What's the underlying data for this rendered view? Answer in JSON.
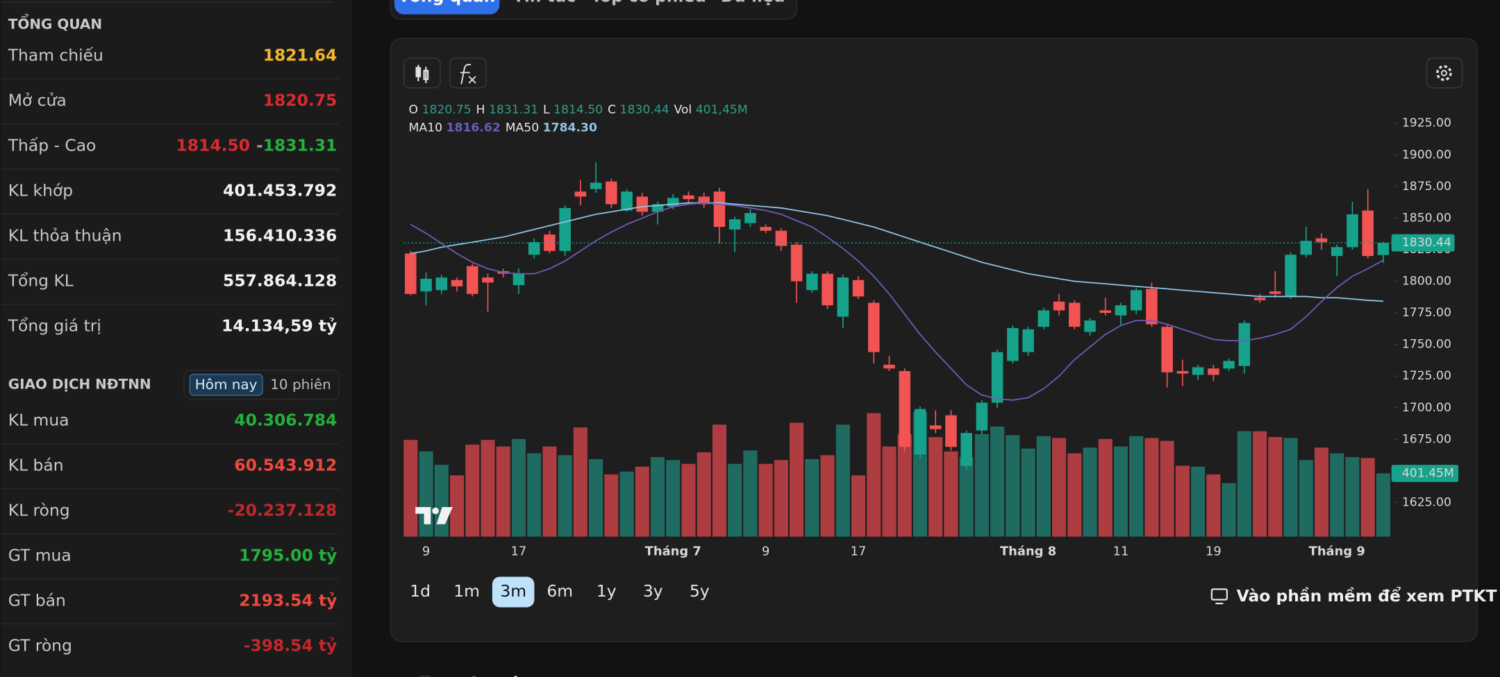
{
  "tabs": [
    "Tổng quan",
    "Tin tức",
    "Top cổ phiếu",
    "Dữ liệu"
  ],
  "overview": {
    "title": "TỔNG QUAN",
    "rows": [
      {
        "label": "Tham chiếu",
        "value": "1821.64",
        "color": "#f2b72c"
      },
      {
        "label": "Mở cửa",
        "value": "1820.75",
        "color": "#d92a2f"
      },
      {
        "label": "Thấp - Cao",
        "low": "1814.50",
        "sep": "-",
        "high": "1831.31",
        "low_color": "#d92a2f",
        "high_color": "#22b23c"
      },
      {
        "label": "KL khớp",
        "value": "401.453.792",
        "color": "#f2f2f2"
      },
      {
        "label": "KL thỏa thuận",
        "value": "156.410.336",
        "color": "#f2f2f2"
      },
      {
        "label": "Tổng KL",
        "value": "557.864.128",
        "color": "#f2f2f2"
      },
      {
        "label": "Tổng giá trị",
        "value": "14.134,59 tỷ",
        "color": "#f2f2f2"
      }
    ]
  },
  "foreign": {
    "title": "GIAO DỊCH NĐTNN",
    "toggle": [
      "Hôm nay",
      "10 phiên"
    ],
    "active": 0,
    "rows": [
      {
        "label": "KL mua",
        "value": "40.306.784",
        "color": "#22b23c"
      },
      {
        "label": "KL bán",
        "value": "60.543.912",
        "color": "#f0493e"
      },
      {
        "label": "KL ròng",
        "value": "-20.237.128",
        "color": "#c3272d"
      },
      {
        "label": "GT mua",
        "value": "1795.00 tỷ",
        "color": "#22b23c"
      },
      {
        "label": "GT bán",
        "value": "2193.54 tỷ",
        "color": "#f0493e"
      },
      {
        "label": "GT ròng",
        "value": "-398.54 tỷ",
        "color": "#c3272d"
      }
    ]
  },
  "chart_data": {
    "type": "candlestick",
    "legend": [
      {
        "label": "O",
        "value": "1820.75"
      },
      {
        "label": "H",
        "value": "1831.31"
      },
      {
        "label": "L",
        "value": "1814.50"
      },
      {
        "label": "C",
        "value": "1830.44"
      },
      {
        "label": "Vol",
        "value": "401,45M"
      }
    ],
    "categories": [
      null,
      "9",
      null,
      null,
      null,
      null,
      null,
      "17",
      null,
      null,
      null,
      null,
      null,
      null,
      null,
      null,
      null,
      "Tháng 7",
      null,
      null,
      null,
      null,
      null,
      "9",
      null,
      null,
      null,
      null,
      null,
      "17",
      null,
      null,
      null,
      null,
      null,
      null,
      null,
      null,
      null,
      null,
      "Tháng 8",
      null,
      null,
      null,
      null,
      null,
      "11",
      null,
      null,
      null,
      null,
      null,
      "19",
      null,
      null,
      null,
      null,
      null,
      null,
      null,
      "Tháng 9",
      null,
      null,
      null
    ],
    "open": [
      1822,
      1792,
      1793,
      1801,
      1812,
      1803,
      1808,
      1797,
      1821,
      1837,
      1824,
      1871,
      1873,
      1879,
      1856,
      1867,
      1855,
      1859,
      1868,
      1867,
      1871,
      1841,
      1846,
      1843,
      1840,
      1829,
      1793,
      1806,
      1772,
      1801,
      1783,
      1734,
      1729,
      1663,
      1686,
      1694,
      1654,
      1682,
      1704,
      1737,
      1744,
      1764,
      1784,
      1783,
      1760,
      1777,
      1773,
      1777,
      1794,
      1764,
      1729,
      1726,
      1731,
      1731,
      1733,
      1787,
      1792,
      1788,
      1821,
      1834,
      1820,
      1827,
      1856,
      1820.75
    ],
    "high": [
      1824,
      1807,
      1805,
      1803,
      1814,
      1806,
      1810,
      1810,
      1834,
      1840,
      1860,
      1880,
      1894,
      1881,
      1873,
      1870,
      1863,
      1869,
      1871,
      1870,
      1874,
      1851,
      1857,
      1845,
      1842,
      1831,
      1808,
      1808,
      1805,
      1804,
      1785,
      1741,
      1731,
      1701,
      1698,
      1698,
      1682,
      1706,
      1746,
      1765,
      1764,
      1779,
      1790,
      1785,
      1771,
      1787,
      1783,
      1795,
      1799,
      1766,
      1738,
      1734,
      1734,
      1739,
      1769,
      1790,
      1808,
      1823,
      1843,
      1838,
      1829,
      1863,
      1873,
      1831.31
    ],
    "low": [
      1789,
      1781,
      1790,
      1792,
      1788,
      1776,
      1803,
      1790,
      1818,
      1822,
      1820,
      1860,
      1870,
      1858,
      1855,
      1852,
      1845,
      1857,
      1862,
      1858,
      1830,
      1823,
      1843,
      1838,
      1824,
      1783,
      1791,
      1778,
      1763,
      1786,
      1735,
      1729,
      1665,
      1660,
      1680,
      1666,
      1651,
      1679,
      1700,
      1735,
      1741,
      1762,
      1773,
      1762,
      1757,
      1773,
      1765,
      1774,
      1764,
      1716,
      1717,
      1722,
      1721,
      1729,
      1727,
      1783,
      1787,
      1786,
      1819,
      1825,
      1804,
      1825,
      1818,
      1814.5
    ],
    "close": [
      1790,
      1802,
      1803,
      1796,
      1790,
      1799,
      1806,
      1806,
      1831,
      1824,
      1858,
      1867,
      1878,
      1861,
      1871,
      1855,
      1861,
      1866,
      1865,
      1861,
      1843,
      1849,
      1854,
      1840,
      1828,
      1800,
      1806,
      1781,
      1803,
      1788,
      1744,
      1731,
      1669,
      1699,
      1683,
      1669,
      1680,
      1704,
      1744,
      1763,
      1762,
      1777,
      1777,
      1764,
      1769,
      1775,
      1781,
      1793,
      1766,
      1728,
      1727,
      1732,
      1726,
      1737,
      1767,
      1785,
      1790,
      1821,
      1832,
      1831,
      1827,
      1853,
      1820,
      1830.44
    ],
    "volume": {
      "values": [
        614,
        541,
        456,
        389,
        584,
        614,
        572,
        620,
        529,
        572,
        517,
        693,
        492,
        395,
        413,
        444,
        505,
        486,
        462,
        535,
        711,
        462,
        547,
        462,
        486,
        723,
        492,
        517,
        711,
        389,
        784,
        572,
        651,
        790,
        632,
        541,
        505,
        651,
        699,
        644,
        559,
        638,
        626,
        529,
        565,
        620,
        572,
        638,
        626,
        608,
        450,
        444,
        395,
        340,
        669,
        669,
        632,
        626,
        486,
        565,
        529,
        505,
        499,
        401.45
      ],
      "tag_label": "401.45M",
      "up_color": "#1f6b62",
      "down_color": "#ad3d40"
    },
    "ma10": {
      "name": "MA10",
      "color": "#6e5cb6",
      "last_label": "1816.62",
      "values": [
        1845,
        1838,
        1830,
        1822,
        1815,
        1810,
        1807,
        1806,
        1806,
        1810,
        1816,
        1824,
        1832,
        1839,
        1845,
        1850,
        1855,
        1859,
        1861,
        1862,
        1861,
        1860,
        1858,
        1856,
        1853,
        1848,
        1843,
        1835,
        1826,
        1816,
        1804,
        1790,
        1774,
        1758,
        1744,
        1731,
        1718,
        1710,
        1707,
        1706,
        1708,
        1715,
        1725,
        1738,
        1748,
        1758,
        1765,
        1769,
        1769,
        1766,
        1762,
        1758,
        1754,
        1753,
        1753,
        1755,
        1758,
        1762,
        1772,
        1784,
        1795,
        1804,
        1810,
        1816.62
      ]
    },
    "ma50": {
      "name": "MA50",
      "color": "#8fc4e8",
      "last_label": "1784.30",
      "values": [
        1822,
        1824,
        1827,
        1829,
        1831,
        1833,
        1835,
        1838,
        1841,
        1844,
        1847,
        1850,
        1853,
        1855,
        1857,
        1859,
        1860,
        1861,
        1862,
        1862,
        1862,
        1861,
        1860,
        1859,
        1858,
        1856,
        1854,
        1852,
        1849,
        1846,
        1843,
        1839,
        1835,
        1831,
        1827,
        1823,
        1819,
        1815,
        1812,
        1809,
        1806,
        1804,
        1802,
        1800,
        1799,
        1798,
        1797,
        1796,
        1795,
        1794,
        1793,
        1792,
        1791,
        1790,
        1789,
        1788,
        1788,
        1788,
        1788,
        1787,
        1787,
        1786,
        1785,
        1784.3
      ]
    },
    "up_color": "#17a38b",
    "down_color": "#f25353",
    "legend_value_color": "#2f9e8a",
    "ylim": [
      1598,
      1947
    ],
    "vlim": [
      0,
      2800
    ],
    "yticks": [
      {
        "value": 1625,
        "label": "1625.00"
      },
      {
        "value": 1650,
        "label": "1650.00"
      },
      {
        "value": 1675,
        "label": "1675.00"
      },
      {
        "value": 1700,
        "label": "1700.00"
      },
      {
        "value": 1725,
        "label": "1725.00"
      },
      {
        "value": 1750,
        "label": "1750.00"
      },
      {
        "value": 1775,
        "label": "1775.00"
      },
      {
        "value": 1800,
        "label": "1800.00"
      },
      {
        "value": 1825,
        "label": "1825.00"
      },
      {
        "value": 1850,
        "label": "1850.00"
      },
      {
        "value": 1875,
        "label": "1875.00"
      },
      {
        "value": 1900,
        "label": "1900.00"
      },
      {
        "value": 1925,
        "label": "1925.00"
      }
    ]
  },
  "ranges": [
    "1d",
    "1m",
    "3m",
    "6m",
    "1y",
    "3y",
    "5y"
  ],
  "active_range": 2,
  "link": "Vào phần mềm để xem PTKT",
  "news_heading": "Tin tức"
}
